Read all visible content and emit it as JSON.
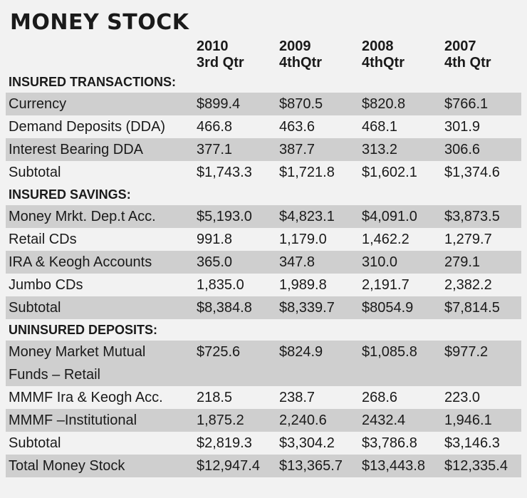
{
  "title": "MONEY STOCK",
  "columns": [
    {
      "year": "2010",
      "period": "3rd Qtr"
    },
    {
      "year": "2009",
      "period": "4thQtr"
    },
    {
      "year": "2008",
      "period": "4thQtr"
    },
    {
      "year": "2007",
      "period": "4th Qtr"
    }
  ],
  "sections": [
    {
      "heading": "INSURED TRANSACTIONS:",
      "rows": [
        {
          "label": "Currency",
          "values": [
            "$899.4",
            "$870.5",
            "$820.8",
            "$766.1"
          ]
        },
        {
          "label": "Demand Deposits (DDA)",
          "values": [
            "466.8",
            "463.6",
            "468.1",
            "301.9"
          ]
        },
        {
          "label": "Interest Bearing DDA",
          "values": [
            "377.1",
            "387.7",
            "313.2",
            "306.6"
          ]
        },
        {
          "label": "Subtotal",
          "values": [
            "$1,743.3",
            "$1,721.8",
            "$1,602.1",
            "$1,374.6"
          ]
        }
      ]
    },
    {
      "heading": "INSURED SAVINGS:",
      "rows": [
        {
          "label": "Money Mrkt. Dep.t Acc.",
          "values": [
            "$5,193.0",
            "$4,823.1",
            "$4,091.0",
            "$3,873.5"
          ]
        },
        {
          "label": "Retail CDs",
          "values": [
            "991.8",
            "1,179.0",
            "1,462.2",
            "1,279.7"
          ]
        },
        {
          "label": "IRA & Keogh Accounts",
          "values": [
            "365.0",
            "347.8",
            "310.0",
            "279.1"
          ]
        },
        {
          "label": "Jumbo CDs",
          "values": [
            "1,835.0",
            "1,989.8",
            "2,191.7",
            "2,382.2"
          ]
        },
        {
          "label": "Subtotal",
          "values": [
            "$8,384.8",
            "$8,339.7",
            "$8054.9",
            "$7,814.5"
          ]
        }
      ]
    },
    {
      "heading": "UNINSURED DEPOSITS:",
      "rows": [
        {
          "label": "Money Market Mutual",
          "label2": "Funds – Retail",
          "values": [
            "$725.6",
            "$824.9",
            "$1,085.8",
            "$977.2"
          ]
        },
        {
          "label": "MMMF Ira & Keogh Acc.",
          "values": [
            "218.5",
            "238.7",
            "268.6",
            "223.0"
          ]
        },
        {
          "label": "MMMF –Institutional",
          "values": [
            "1,875.2",
            "2,240.6",
            " 2432.4",
            "1,946.1"
          ]
        },
        {
          "label": "Subtotal",
          "values": [
            "$2,819.3",
            "$3,304.2",
            "$3,786.8",
            "$3,146.3"
          ]
        }
      ]
    }
  ],
  "total": {
    "label": "Total Money Stock",
    "values": [
      "$12,947.4",
      "$13,365.7",
      "$13,443.8",
      "$12,335.4"
    ]
  }
}
